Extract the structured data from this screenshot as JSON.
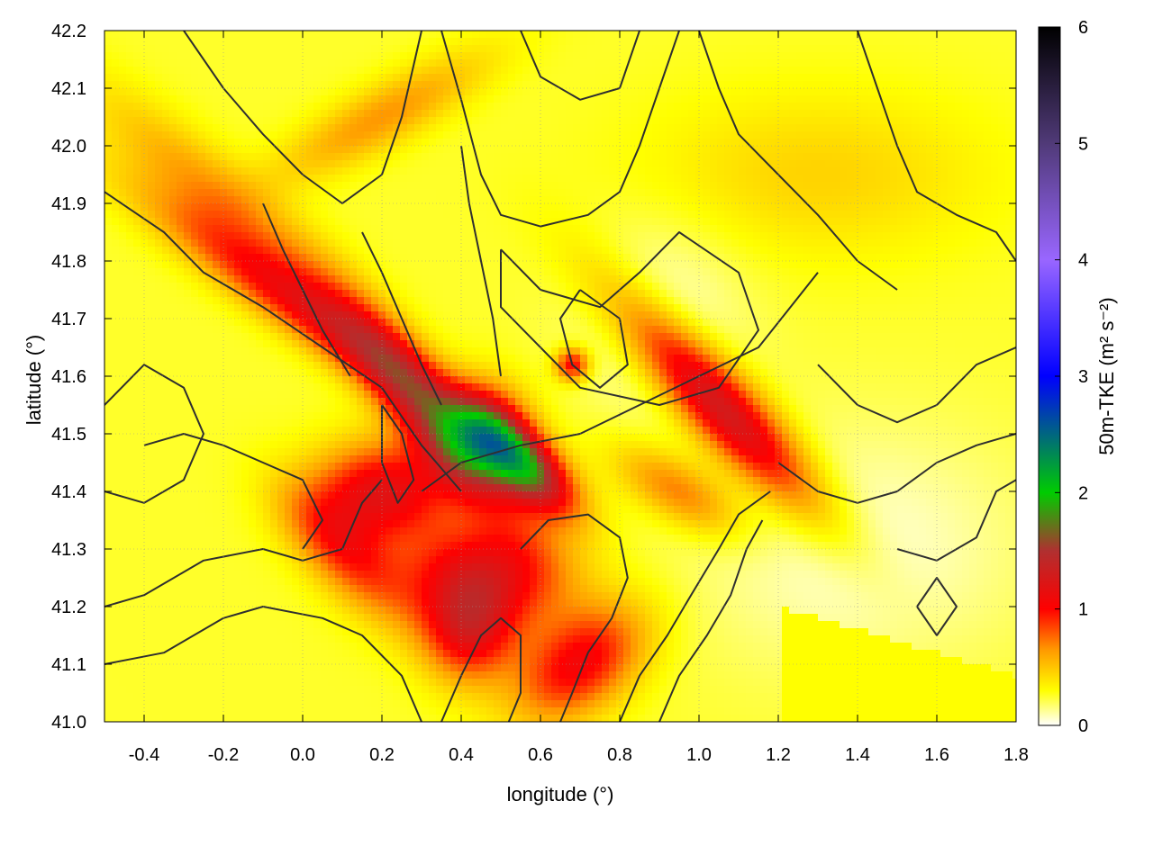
{
  "chart_data": {
    "type": "heatmap",
    "title": "",
    "xlabel": "longitude (°)",
    "ylabel": "latitude (°)",
    "xlim": [
      -0.5,
      1.8
    ],
    "ylim": [
      41.0,
      42.2
    ],
    "x_ticks": [
      -0.4,
      -0.2,
      0.0,
      0.2,
      0.4,
      0.6,
      0.8,
      1.0,
      1.2,
      1.4,
      1.6,
      1.8
    ],
    "x_tick_labels": [
      "-0.4",
      "-0.2",
      "0.0",
      "0.2",
      "0.4",
      "0.6",
      "0.8",
      "1.0",
      "1.2",
      "1.4",
      "1.6",
      "1.8"
    ],
    "y_ticks": [
      41.0,
      41.1,
      41.2,
      41.3,
      41.4,
      41.5,
      41.6,
      41.7,
      41.8,
      41.9,
      42.0,
      42.1,
      42.2
    ],
    "y_tick_labels": [
      "41.0",
      "41.1",
      "41.2",
      "41.3",
      "41.4",
      "41.5",
      "41.6",
      "41.7",
      "41.8",
      "41.9",
      "42.0",
      "42.1",
      "42.2"
    ],
    "grid": true,
    "colorbar": {
      "label": "50m-TKE (m² s⁻²)",
      "range": [
        0,
        6
      ],
      "ticks": [
        0,
        1,
        2,
        3,
        4,
        5,
        6
      ],
      "tick_labels": [
        "0",
        "1",
        "2",
        "3",
        "4",
        "5",
        "6"
      ],
      "colors": [
        {
          "value": 0.0,
          "color": "#ffffff"
        },
        {
          "value": 0.3,
          "color": "#ffff00"
        },
        {
          "value": 0.65,
          "color": "#ff9900"
        },
        {
          "value": 1.0,
          "color": "#ff0000"
        },
        {
          "value": 1.5,
          "color": "#b03030"
        },
        {
          "value": 2.0,
          "color": "#00cc00"
        },
        {
          "value": 3.0,
          "color": "#0000ff"
        },
        {
          "value": 4.0,
          "color": "#9966ff"
        },
        {
          "value": 5.0,
          "color": "#503a78"
        },
        {
          "value": 6.0,
          "color": "#000000"
        }
      ]
    },
    "field": {
      "background": 0.25,
      "features": [
        {
          "lon": 0.55,
          "lat": 41.45,
          "amp": 1.5,
          "rx": 0.1,
          "ry": 0.04,
          "rot": -28
        },
        {
          "lon": 0.45,
          "lat": 41.5,
          "amp": 0.9,
          "rx": 0.08,
          "ry": 0.06,
          "rot": 0
        },
        {
          "lon": 0.3,
          "lat": 41.55,
          "amp": 0.9,
          "rx": 0.2,
          "ry": 0.05,
          "rot": -40
        },
        {
          "lon": 0.0,
          "lat": 41.72,
          "amp": 0.7,
          "rx": 0.3,
          "ry": 0.04,
          "rot": -25
        },
        {
          "lon": 1.05,
          "lat": 41.55,
          "amp": 1.1,
          "rx": 0.22,
          "ry": 0.05,
          "rot": -35
        },
        {
          "lon": 0.2,
          "lat": 41.4,
          "amp": 0.9,
          "rx": 0.12,
          "ry": 0.06,
          "rot": 0
        },
        {
          "lon": 0.45,
          "lat": 41.25,
          "amp": 0.9,
          "rx": 0.15,
          "ry": 0.07,
          "rot": 0
        },
        {
          "lon": 0.7,
          "lat": 41.1,
          "amp": 0.8,
          "rx": 0.12,
          "ry": 0.06,
          "rot": 20
        },
        {
          "lon": 0.1,
          "lat": 41.3,
          "amp": 0.6,
          "rx": 0.12,
          "ry": 0.05,
          "rot": -30
        },
        {
          "lon": 0.68,
          "lat": 41.62,
          "amp": 0.8,
          "rx": 0.03,
          "ry": 0.02,
          "rot": 0
        },
        {
          "lon": 0.42,
          "lat": 41.15,
          "amp": 0.7,
          "rx": 0.08,
          "ry": 0.06,
          "rot": 0
        },
        {
          "lon": 0.95,
          "lat": 41.4,
          "amp": 0.5,
          "rx": 0.12,
          "ry": 0.04,
          "rot": -20
        },
        {
          "lon": 0.9,
          "lat": 41.7,
          "amp": -0.2,
          "rx": 0.15,
          "ry": 0.12,
          "rot": 0
        },
        {
          "lon": 1.4,
          "lat": 41.3,
          "amp": -0.2,
          "rx": 0.3,
          "ry": 0.15,
          "rot": 0
        },
        {
          "lon": -0.2,
          "lat": 41.9,
          "amp": 0.4,
          "rx": 0.25,
          "ry": 0.05,
          "rot": -30
        },
        {
          "lon": 0.2,
          "lat": 42.05,
          "amp": 0.4,
          "rx": 0.2,
          "ry": 0.04,
          "rot": 20
        },
        {
          "lon": 1.3,
          "lat": 41.95,
          "amp": 0.2,
          "rx": 0.3,
          "ry": 0.1,
          "rot": 0
        }
      ],
      "sea": {
        "lon": [
          1.2,
          1.8
        ],
        "lat": [
          41.0,
          41.2
        ],
        "value": 0.3
      }
    },
    "contours": [
      [
        [
          -0.5,
          41.92
        ],
        [
          -0.35,
          41.85
        ],
        [
          -0.25,
          41.78
        ],
        [
          -0.1,
          41.72
        ],
        [
          0.05,
          41.65
        ],
        [
          0.2,
          41.58
        ],
        [
          0.3,
          41.48
        ],
        [
          0.4,
          41.4
        ]
      ],
      [
        [
          -0.5,
          41.55
        ],
        [
          -0.4,
          41.62
        ],
        [
          -0.3,
          41.58
        ],
        [
          -0.25,
          41.5
        ],
        [
          -0.3,
          41.42
        ],
        [
          -0.4,
          41.38
        ],
        [
          -0.5,
          41.4
        ]
      ],
      [
        [
          0.2,
          41.55
        ],
        [
          0.25,
          41.5
        ],
        [
          0.28,
          41.42
        ],
        [
          0.24,
          41.38
        ],
        [
          0.2,
          41.45
        ],
        [
          0.2,
          41.55
        ]
      ],
      [
        [
          0.3,
          41.4
        ],
        [
          0.4,
          41.45
        ],
        [
          0.55,
          41.48
        ],
        [
          0.7,
          41.5
        ],
        [
          0.85,
          41.55
        ],
        [
          1.0,
          41.6
        ],
        [
          1.15,
          41.65
        ],
        [
          1.3,
          41.78
        ]
      ],
      [
        [
          0.5,
          41.82
        ],
        [
          0.6,
          41.75
        ],
        [
          0.75,
          41.72
        ],
        [
          0.85,
          41.78
        ],
        [
          0.95,
          41.85
        ],
        [
          1.1,
          41.78
        ],
        [
          1.15,
          41.68
        ],
        [
          1.05,
          41.58
        ],
        [
          0.9,
          41.55
        ],
        [
          0.7,
          41.58
        ],
        [
          0.6,
          41.65
        ],
        [
          0.5,
          41.72
        ],
        [
          0.5,
          41.82
        ]
      ],
      [
        [
          0.7,
          41.75
        ],
        [
          0.8,
          41.7
        ],
        [
          0.82,
          41.62
        ],
        [
          0.75,
          41.58
        ],
        [
          0.68,
          41.62
        ],
        [
          0.65,
          41.7
        ],
        [
          0.7,
          41.75
        ]
      ],
      [
        [
          0.35,
          42.2
        ],
        [
          0.4,
          42.08
        ],
        [
          0.45,
          41.95
        ],
        [
          0.5,
          41.88
        ],
        [
          0.6,
          41.86
        ],
        [
          0.72,
          41.88
        ],
        [
          0.8,
          41.92
        ],
        [
          0.85,
          42.0
        ],
        [
          0.9,
          42.1
        ],
        [
          0.95,
          42.2
        ]
      ],
      [
        [
          0.55,
          42.2
        ],
        [
          0.6,
          42.12
        ],
        [
          0.7,
          42.08
        ],
        [
          0.8,
          42.1
        ],
        [
          0.85,
          42.2
        ]
      ],
      [
        [
          1.0,
          42.2
        ],
        [
          1.05,
          42.1
        ],
        [
          1.1,
          42.02
        ],
        [
          1.2,
          41.95
        ],
        [
          1.3,
          41.88
        ],
        [
          1.4,
          41.8
        ],
        [
          1.5,
          41.75
        ]
      ],
      [
        [
          -0.3,
          42.2
        ],
        [
          -0.2,
          42.1
        ],
        [
          -0.1,
          42.02
        ],
        [
          0.0,
          41.95
        ],
        [
          0.1,
          41.9
        ],
        [
          0.2,
          41.95
        ],
        [
          0.25,
          42.05
        ],
        [
          0.3,
          42.2
        ]
      ],
      [
        [
          -0.5,
          41.2
        ],
        [
          -0.4,
          41.22
        ],
        [
          -0.25,
          41.28
        ],
        [
          -0.1,
          41.3
        ],
        [
          0.0,
          41.28
        ],
        [
          0.1,
          41.3
        ],
        [
          0.15,
          41.38
        ],
        [
          0.2,
          41.42
        ]
      ],
      [
        [
          -0.5,
          41.1
        ],
        [
          -0.35,
          41.12
        ],
        [
          -0.2,
          41.18
        ],
        [
          -0.1,
          41.2
        ],
        [
          0.05,
          41.18
        ],
        [
          0.15,
          41.15
        ],
        [
          0.25,
          41.08
        ],
        [
          0.3,
          41.0
        ]
      ],
      [
        [
          0.35,
          41.0
        ],
        [
          0.4,
          41.08
        ],
        [
          0.45,
          41.15
        ],
        [
          0.5,
          41.18
        ],
        [
          0.55,
          41.15
        ],
        [
          0.55,
          41.05
        ],
        [
          0.52,
          41.0
        ]
      ],
      [
        [
          0.55,
          41.3
        ],
        [
          0.62,
          41.35
        ],
        [
          0.72,
          41.36
        ],
        [
          0.8,
          41.32
        ],
        [
          0.82,
          41.25
        ],
        [
          0.78,
          41.18
        ],
        [
          0.72,
          41.12
        ],
        [
          0.68,
          41.05
        ],
        [
          0.65,
          41.0
        ]
      ],
      [
        [
          0.8,
          41.0
        ],
        [
          0.85,
          41.08
        ],
        [
          0.92,
          41.15
        ],
        [
          0.98,
          41.22
        ],
        [
          1.05,
          41.3
        ],
        [
          1.1,
          41.36
        ],
        [
          1.18,
          41.4
        ]
      ],
      [
        [
          0.9,
          41.0
        ],
        [
          0.95,
          41.08
        ],
        [
          1.02,
          41.15
        ],
        [
          1.08,
          41.22
        ],
        [
          1.12,
          41.3
        ],
        [
          1.16,
          41.35
        ]
      ],
      [
        [
          1.2,
          41.45
        ],
        [
          1.3,
          41.4
        ],
        [
          1.4,
          41.38
        ],
        [
          1.5,
          41.4
        ],
        [
          1.6,
          41.45
        ],
        [
          1.7,
          41.48
        ],
        [
          1.8,
          41.5
        ]
      ],
      [
        [
          1.3,
          41.62
        ],
        [
          1.4,
          41.55
        ],
        [
          1.5,
          41.52
        ],
        [
          1.6,
          41.55
        ],
        [
          1.7,
          41.62
        ],
        [
          1.8,
          41.65
        ]
      ],
      [
        [
          1.4,
          42.2
        ],
        [
          1.45,
          42.1
        ],
        [
          1.5,
          42.0
        ],
        [
          1.55,
          41.92
        ],
        [
          1.65,
          41.88
        ],
        [
          1.75,
          41.85
        ],
        [
          1.8,
          41.8
        ]
      ],
      [
        [
          1.5,
          41.3
        ],
        [
          1.6,
          41.28
        ],
        [
          1.7,
          41.32
        ],
        [
          1.75,
          41.4
        ],
        [
          1.8,
          41.42
        ]
      ],
      [
        [
          1.55,
          41.2
        ],
        [
          1.6,
          41.25
        ],
        [
          1.65,
          41.2
        ],
        [
          1.6,
          41.15
        ],
        [
          1.55,
          41.2
        ]
      ],
      [
        [
          -0.4,
          41.48
        ],
        [
          -0.3,
          41.5
        ],
        [
          -0.2,
          41.48
        ],
        [
          -0.1,
          41.45
        ],
        [
          0.0,
          41.42
        ],
        [
          0.05,
          41.35
        ],
        [
          0.0,
          41.3
        ]
      ],
      [
        [
          -0.1,
          41.9
        ],
        [
          -0.05,
          41.82
        ],
        [
          0.0,
          41.75
        ],
        [
          0.05,
          41.68
        ],
        [
          0.12,
          41.6
        ]
      ],
      [
        [
          0.15,
          41.85
        ],
        [
          0.2,
          41.78
        ],
        [
          0.25,
          41.7
        ],
        [
          0.3,
          41.62
        ],
        [
          0.35,
          41.55
        ]
      ],
      [
        [
          0.4,
          42.0
        ],
        [
          0.42,
          41.9
        ],
        [
          0.45,
          41.8
        ],
        [
          0.48,
          41.7
        ],
        [
          0.5,
          41.6
        ]
      ]
    ]
  }
}
